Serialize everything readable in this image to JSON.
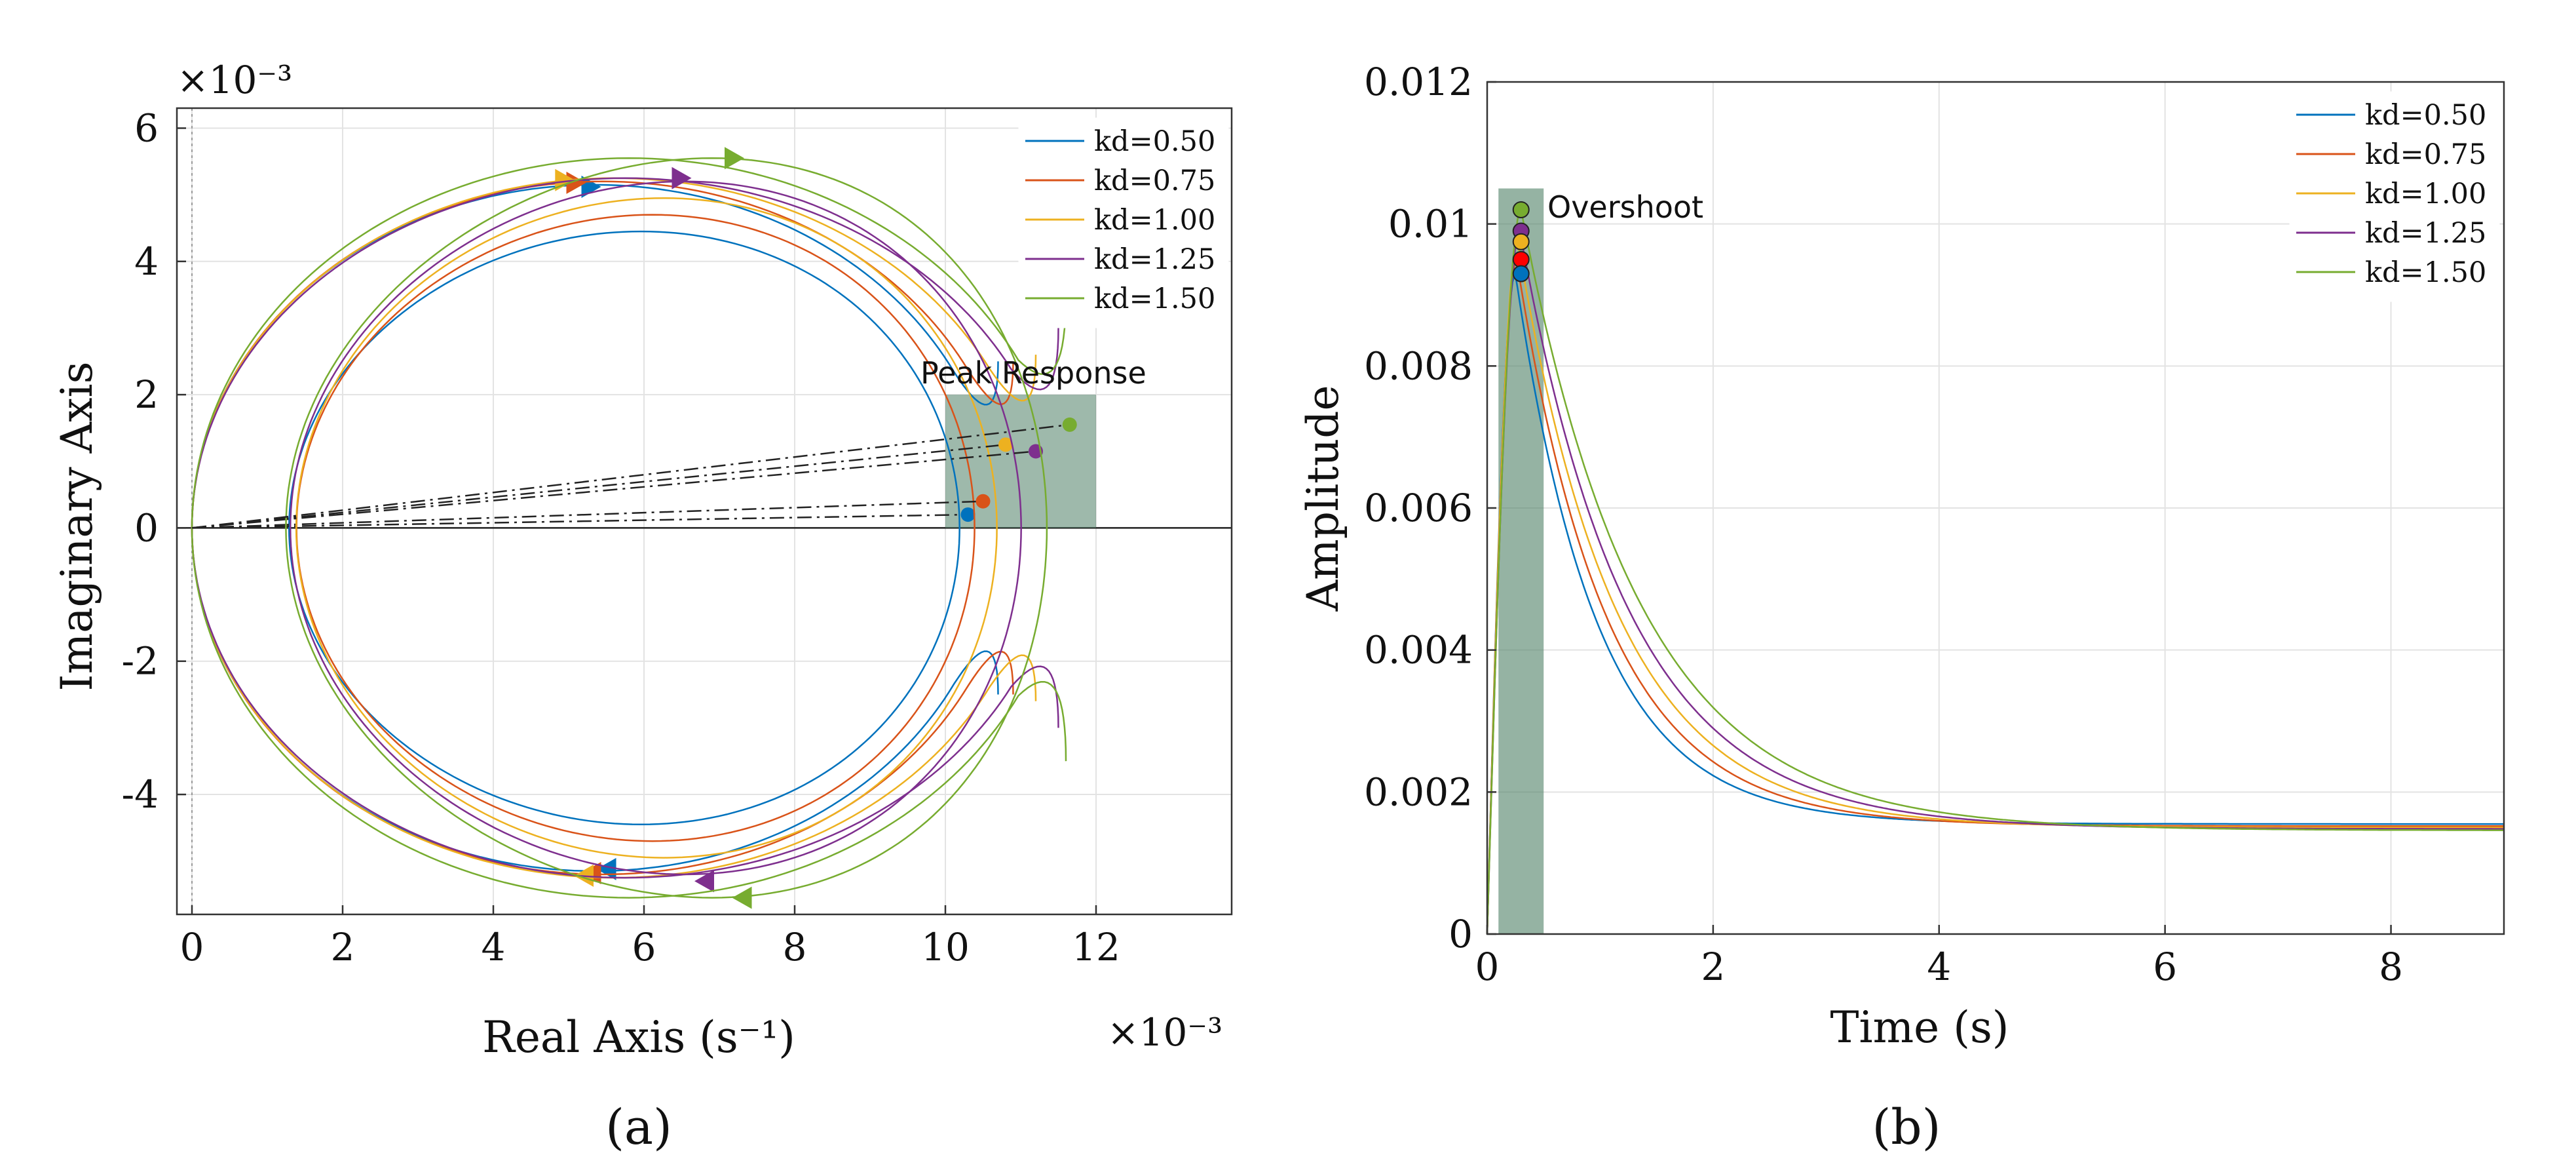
{
  "colors": {
    "s050": "#0072BD",
    "s075": "#D95319",
    "s100": "#EDB120",
    "s125": "#7E2F8E",
    "s150": "#77AC30",
    "shade": "#4E8066",
    "peak_fill_b": "#FF0000"
  },
  "chart_data": [
    {
      "type": "line",
      "panel_label": "(a)",
      "title": "",
      "xlabel": "Real Axis (s⁻¹)",
      "ylabel": "Imaginary Axis",
      "x_exponent": "×10⁻³",
      "y_exponent": "×10⁻³",
      "xlim": [
        -0.2,
        13.8
      ],
      "ylim": [
        -5.8,
        6.3
      ],
      "xticks": [
        0,
        2,
        4,
        6,
        8,
        10,
        12
      ],
      "yticks": [
        -4,
        -2,
        0,
        2,
        4,
        6
      ],
      "xtick_labels": [
        "0",
        "2",
        "4",
        "6",
        "8",
        "10",
        "12"
      ],
      "ytick_labels": [
        "-4",
        "-2",
        "0",
        "2",
        "4",
        "6"
      ],
      "grid": true,
      "legend": "top-right",
      "annotation": "Peak Response",
      "peak_region": {
        "x": [
          10.0,
          12.0
        ],
        "y": [
          0,
          2.0
        ]
      },
      "series": [
        {
          "name": "kd=0.50",
          "color_key": "s050",
          "peak": [
            10.3,
            0.2
          ],
          "right_loop": {
            "cx": 5.85,
            "cy": 0,
            "rx": 4.45,
            "ry": 4.45,
            "pull": 0.05
          },
          "outer": {
            "x0": 0,
            "xt": 5.2,
            "ytop": 5.15,
            "xr": 10.1,
            "yr": 2.5
          },
          "arrow_top": [
            5.3,
            5.12
          ],
          "arrow_bottom": [
            5.5,
            -5.12
          ]
        },
        {
          "name": "kd=0.75",
          "color_key": "s075",
          "peak": [
            10.5,
            0.4
          ],
          "right_loop": {
            "cx": 6.0,
            "cy": 0,
            "rx": 4.5,
            "ry": 4.7,
            "pull": 0.05
          },
          "outer": {
            "x0": 0,
            "xt": 5.0,
            "ytop": 5.2,
            "xr": 10.3,
            "yr": 2.5
          },
          "arrow_top": [
            5.1,
            5.18
          ],
          "arrow_bottom": [
            5.3,
            -5.18
          ]
        },
        {
          "name": "kd=1.00",
          "color_key": "s100",
          "peak": [
            10.8,
            1.25
          ],
          "right_loop": {
            "cx": 6.15,
            "cy": 0,
            "rx": 4.65,
            "ry": 4.95,
            "pull": 0.05
          },
          "outer": {
            "x0": 0,
            "xt": 4.9,
            "ytop": 5.25,
            "xr": 10.6,
            "yr": 2.6
          },
          "arrow_top": [
            4.95,
            5.22
          ],
          "arrow_bottom": [
            5.2,
            -5.22
          ]
        },
        {
          "name": "kd=1.25",
          "color_key": "s125",
          "peak": [
            11.2,
            1.15
          ],
          "right_loop": {
            "cx": 6.35,
            "cy": 0,
            "rx": 4.85,
            "ry": 5.2,
            "pull": 0.08
          },
          "outer": {
            "x0": 0,
            "xt": 6.5,
            "ytop": 5.25,
            "xr": 10.9,
            "yr": 3.0
          },
          "arrow_top": [
            6.5,
            5.25
          ],
          "arrow_bottom": [
            6.8,
            -5.3
          ]
        },
        {
          "name": "kd=1.50",
          "color_key": "s150",
          "peak": [
            11.65,
            1.55
          ],
          "right_loop": {
            "cx": 6.6,
            "cy": 0,
            "rx": 5.05,
            "ry": 5.55,
            "pull": 0.12
          },
          "outer": {
            "x0": 0,
            "xt": 7.2,
            "ytop": 5.55,
            "xr": 11.0,
            "yr": 3.5
          },
          "arrow_top": [
            7.2,
            5.55
          ],
          "arrow_bottom": [
            7.3,
            -5.55
          ]
        }
      ]
    },
    {
      "type": "line",
      "panel_label": "(b)",
      "title": "",
      "xlabel": "Time (s)",
      "ylabel": "Amplitude",
      "xlim": [
        0,
        9
      ],
      "ylim": [
        0,
        0.012
      ],
      "xticks": [
        0,
        2,
        4,
        6,
        8
      ],
      "yticks": [
        0,
        0.002,
        0.004,
        0.006,
        0.008,
        0.01,
        0.012
      ],
      "xtick_labels": [
        "0",
        "2",
        "4",
        "6",
        "8"
      ],
      "ytick_labels": [
        "0",
        "0.002",
        "0.004",
        "0.006",
        "0.008",
        "0.01",
        "0.012"
      ],
      "grid": true,
      "legend": "top-right",
      "annotation": "Overshoot",
      "overshoot_region": {
        "x": [
          0.1,
          0.5
        ],
        "y": [
          0,
          0.0105
        ]
      },
      "series": [
        {
          "name": "kd=0.50",
          "color_key": "s050",
          "peak_t": 0.25,
          "peak": 0.0093,
          "final": 0.00155,
          "tau": 0.72
        },
        {
          "name": "kd=0.75",
          "color_key": "s075",
          "peak_t": 0.26,
          "peak": 0.0095,
          "final": 0.00152,
          "tau": 0.8
        },
        {
          "name": "kd=1.00",
          "color_key": "s100",
          "peak_t": 0.27,
          "peak": 0.00975,
          "final": 0.0015,
          "tau": 0.88
        },
        {
          "name": "kd=1.25",
          "color_key": "s125",
          "peak_t": 0.29,
          "peak": 0.0099,
          "final": 0.00148,
          "tau": 0.96
        },
        {
          "name": "kd=1.50",
          "color_key": "s150",
          "peak_t": 0.3,
          "peak": 0.0102,
          "final": 0.00146,
          "tau": 1.05
        }
      ]
    }
  ]
}
